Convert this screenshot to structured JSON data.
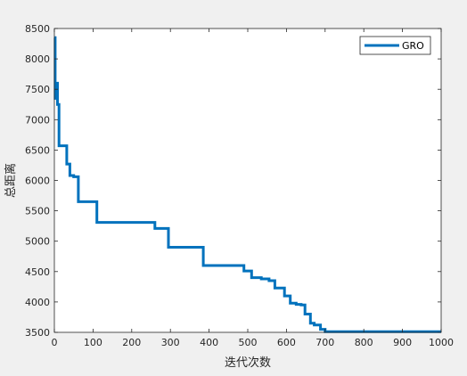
{
  "chart_data": {
    "type": "line",
    "title": "",
    "xlabel": "迭代次数",
    "ylabel": "总距离",
    "xlim": [
      0,
      1000
    ],
    "ylim": [
      3500,
      8500
    ],
    "xticks": [
      0,
      100,
      200,
      300,
      400,
      500,
      600,
      700,
      800,
      900,
      1000
    ],
    "yticks": [
      3500,
      4000,
      4500,
      5000,
      5500,
      6000,
      6500,
      7000,
      7500,
      8000,
      8500
    ],
    "grid": false,
    "legend_position": "top-right",
    "colors": {
      "line": "#0072bd",
      "axes": "#262626",
      "figure_bg": "#f0f0f0",
      "plot_bg": "#ffffff"
    },
    "series": [
      {
        "name": "GRO",
        "step": true,
        "x": [
          0,
          2,
          5,
          8,
          12,
          32,
          40,
          50,
          62,
          110,
          260,
          295,
          385,
          490,
          510,
          535,
          555,
          570,
          595,
          610,
          625,
          638,
          648,
          662,
          672,
          688,
          700,
          1000
        ],
        "y": [
          8350,
          7350,
          7600,
          7250,
          6570,
          6270,
          6080,
          6060,
          5650,
          5310,
          5210,
          4900,
          4600,
          4510,
          4400,
          4380,
          4350,
          4230,
          4100,
          3980,
          3960,
          3950,
          3800,
          3650,
          3620,
          3550,
          3510,
          3510
        ]
      }
    ]
  }
}
